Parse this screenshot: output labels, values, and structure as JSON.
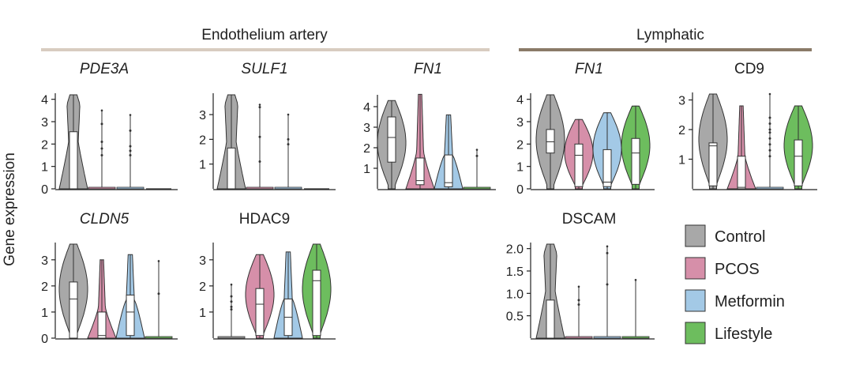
{
  "y_axis_label": "Gene expression",
  "groups": [
    {
      "label": "Endothelium artery",
      "color": "#d8ccc0"
    },
    {
      "label": "Lymphatic",
      "color": "#8a7a68"
    }
  ],
  "legend": {
    "items": [
      {
        "label": "Control",
        "color": "#a8a8a8"
      },
      {
        "label": "PCOS",
        "color": "#d68fa9"
      },
      {
        "label": "Metformin",
        "color": "#a3c9e6"
      },
      {
        "label": "Lifestyle",
        "color": "#6dbd5e"
      }
    ]
  },
  "chart_data": [
    {
      "type": "violin",
      "title": "PDE3A",
      "italic": true,
      "group": "Endothelium artery",
      "ylim": [
        0,
        4.2
      ],
      "yticks": [
        0,
        1,
        2,
        3,
        4
      ],
      "series": [
        {
          "name": "Control",
          "max": 4.2,
          "q1": 0,
          "median": 0,
          "q3": 2.55,
          "outliers": [],
          "shape": "skew"
        },
        {
          "name": "PCOS",
          "max": 3.5,
          "q1": 0,
          "median": 0,
          "q3": 0,
          "outliers": [
            2.9,
            2.1,
            1.8,
            1.5
          ],
          "shape": "flat"
        },
        {
          "name": "Metformin",
          "max": 3.3,
          "q1": 0,
          "median": 0,
          "q3": 0,
          "outliers": [
            2.6,
            1.9,
            1.7,
            1.5
          ],
          "shape": "flat"
        },
        {
          "name": "Lifestyle",
          "max": 0,
          "q1": 0,
          "median": 0,
          "q3": 0,
          "outliers": [],
          "shape": "none"
        }
      ]
    },
    {
      "type": "violin",
      "title": "SULF1",
      "italic": true,
      "group": "Endothelium artery",
      "ylim": [
        0,
        3.8
      ],
      "yticks": [
        1,
        2,
        3
      ],
      "series": [
        {
          "name": "Control",
          "max": 3.8,
          "q1": 0,
          "median": 0,
          "q3": 1.65,
          "outliers": [],
          "shape": "skew"
        },
        {
          "name": "PCOS",
          "max": 3.4,
          "q1": 0,
          "median": 0,
          "q3": 0,
          "outliers": [
            3.3,
            2.1,
            1.1
          ],
          "shape": "flat"
        },
        {
          "name": "Metformin",
          "max": 3.0,
          "q1": 0,
          "median": 0,
          "q3": 0,
          "outliers": [
            2.0,
            1.8
          ],
          "shape": "flat"
        },
        {
          "name": "Lifestyle",
          "max": 0,
          "q1": 0,
          "median": 0,
          "q3": 0,
          "outliers": [],
          "shape": "none"
        }
      ]
    },
    {
      "type": "violin",
      "title": "FN1",
      "italic": true,
      "group": "Endothelium artery",
      "ylim": [
        0,
        4.5
      ],
      "yticks": [
        1,
        2,
        3,
        4
      ],
      "series": [
        {
          "name": "Control",
          "max": 4.3,
          "q1": 1.3,
          "median": 2.5,
          "q3": 3.5,
          "outliers": [],
          "shape": "wide"
        },
        {
          "name": "PCOS",
          "max": 4.6,
          "q1": 0.2,
          "median": 0.4,
          "q3": 1.5,
          "outliers": [],
          "shape": "bottom"
        },
        {
          "name": "Metformin",
          "max": 3.6,
          "q1": 0.1,
          "median": 0.3,
          "q3": 1.65,
          "outliers": [],
          "shape": "mid"
        },
        {
          "name": "Lifestyle",
          "max": 1.9,
          "q1": 0,
          "median": 0,
          "q3": 0,
          "outliers": [
            1.6
          ],
          "shape": "flat"
        }
      ]
    },
    {
      "type": "violin",
      "title": "FN1",
      "italic": true,
      "group": "Lymphatic",
      "ylim": [
        0,
        4.2
      ],
      "yticks": [
        0,
        1,
        2,
        3,
        4
      ],
      "series": [
        {
          "name": "Control",
          "max": 4.2,
          "q1": 1.6,
          "median": 2.1,
          "q3": 2.65,
          "outliers": [],
          "shape": "wide"
        },
        {
          "name": "PCOS",
          "max": 3.1,
          "q1": 0.1,
          "median": 1.5,
          "q3": 2.0,
          "outliers": [],
          "shape": "wide"
        },
        {
          "name": "Metformin",
          "max": 3.4,
          "q1": 0.1,
          "median": 0.3,
          "q3": 1.75,
          "outliers": [],
          "shape": "wide"
        },
        {
          "name": "Lifestyle",
          "max": 3.7,
          "q1": 0.2,
          "median": 1.6,
          "q3": 2.25,
          "outliers": [],
          "shape": "wide"
        }
      ]
    },
    {
      "type": "violin",
      "title": "CD9",
      "italic": false,
      "group": "Lymphatic",
      "ylim": [
        0,
        3.2
      ],
      "yticks": [
        1,
        2,
        3
      ],
      "series": [
        {
          "name": "Control",
          "max": 3.2,
          "q1": 0.1,
          "median": 1.45,
          "q3": 1.55,
          "outliers": [],
          "shape": "wide"
        },
        {
          "name": "PCOS",
          "max": 2.8,
          "q1": 0,
          "median": 0.05,
          "q3": 1.1,
          "outliers": [],
          "shape": "bottom"
        },
        {
          "name": "Metformin",
          "max": 3.2,
          "q1": 0,
          "median": 0,
          "q3": 0,
          "outliers": [
            2.4,
            2.2,
            2.0,
            1.9,
            1.7,
            1.5,
            1.3,
            1.1
          ],
          "shape": "flat"
        },
        {
          "name": "Lifestyle",
          "max": 2.8,
          "q1": 0.1,
          "median": 1.1,
          "q3": 1.65,
          "outliers": [],
          "shape": "wide"
        }
      ]
    },
    {
      "type": "violin",
      "title": "CLDN5",
      "italic": true,
      "group": "Endothelium artery",
      "ylim": [
        0,
        3.6
      ],
      "yticks": [
        0,
        1,
        2,
        3
      ],
      "series": [
        {
          "name": "Control",
          "max": 3.6,
          "q1": 0,
          "median": 1.5,
          "q3": 2.15,
          "outliers": [],
          "shape": "wide"
        },
        {
          "name": "PCOS",
          "max": 3.0,
          "q1": 0,
          "median": 0.1,
          "q3": 1.0,
          "outliers": [],
          "shape": "bottom"
        },
        {
          "name": "Metformin",
          "max": 3.2,
          "q1": 0.1,
          "median": 1.0,
          "q3": 1.65,
          "outliers": [],
          "shape": "mid"
        },
        {
          "name": "Lifestyle",
          "max": 2.95,
          "q1": 0,
          "median": 0,
          "q3": 0,
          "outliers": [
            1.7
          ],
          "shape": "flat"
        }
      ]
    },
    {
      "type": "violin",
      "title": "HDAC9",
      "italic": false,
      "group": "Endothelium artery",
      "ylim": [
        0,
        3.6
      ],
      "yticks": [
        1,
        2,
        3
      ],
      "series": [
        {
          "name": "Control",
          "max": 2.05,
          "q1": 0,
          "median": 0,
          "q3": 0,
          "outliers": [
            1.6,
            1.4,
            1.2,
            1.1
          ],
          "shape": "flat"
        },
        {
          "name": "PCOS",
          "max": 3.2,
          "q1": 0.1,
          "median": 1.3,
          "q3": 1.9,
          "outliers": [],
          "shape": "wide"
        },
        {
          "name": "Metformin",
          "max": 3.3,
          "q1": 0.1,
          "median": 0.8,
          "q3": 1.5,
          "outliers": [],
          "shape": "mid"
        },
        {
          "name": "Lifestyle",
          "max": 3.6,
          "q1": 0.1,
          "median": 2.2,
          "q3": 2.6,
          "outliers": [],
          "shape": "wide"
        }
      ]
    },
    {
      "type": "violin",
      "title": "DSCAM",
      "italic": false,
      "group": "Lymphatic",
      "ylim": [
        0,
        2.1
      ],
      "yticks": [
        0.5,
        1.0,
        1.5,
        2.0
      ],
      "ytick_labels": [
        "0.5",
        "1.0",
        "1.5",
        "2.0"
      ],
      "series": [
        {
          "name": "Control",
          "max": 2.1,
          "q1": 0,
          "median": 0,
          "q3": 0.85,
          "outliers": [],
          "shape": "skew"
        },
        {
          "name": "PCOS",
          "max": 1.15,
          "q1": 0,
          "median": 0,
          "q3": 0,
          "outliers": [
            0.85,
            0.75
          ],
          "shape": "flat"
        },
        {
          "name": "Metformin",
          "max": 2.05,
          "q1": 0,
          "median": 0,
          "q3": 0,
          "outliers": [
            1.9,
            1.2
          ],
          "shape": "flat"
        },
        {
          "name": "Lifestyle",
          "max": 1.3,
          "q1": 0,
          "median": 0,
          "q3": 0,
          "outliers": [],
          "shape": "flat"
        }
      ]
    }
  ]
}
